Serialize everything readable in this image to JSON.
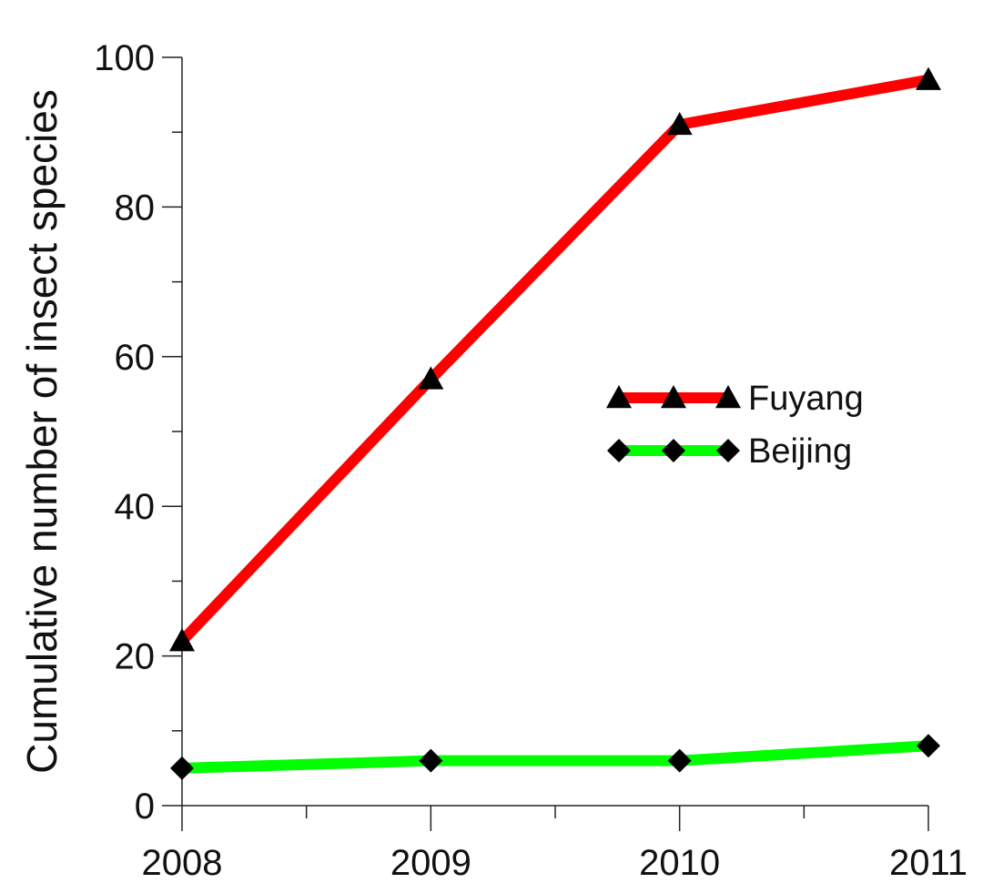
{
  "chart_data": {
    "type": "line",
    "categories": [
      "2008",
      "2009",
      "2010",
      "2011"
    ],
    "x": [
      2008,
      2009,
      2010,
      2011
    ],
    "series": [
      {
        "name": "Fuyang",
        "values": [
          22,
          57,
          91,
          97
        ],
        "color": "#ff0000",
        "marker": "triangle"
      },
      {
        "name": "Beijing",
        "values": [
          5,
          6,
          6,
          8
        ],
        "color": "#00ff00",
        "marker": "diamond"
      }
    ],
    "xlabel": "",
    "ylabel": "Cumulative number of insect species",
    "ylim": [
      0,
      100
    ],
    "yticks": [
      0,
      20,
      40,
      60,
      80,
      100
    ],
    "grid": false,
    "legend_position": "right-middle"
  }
}
